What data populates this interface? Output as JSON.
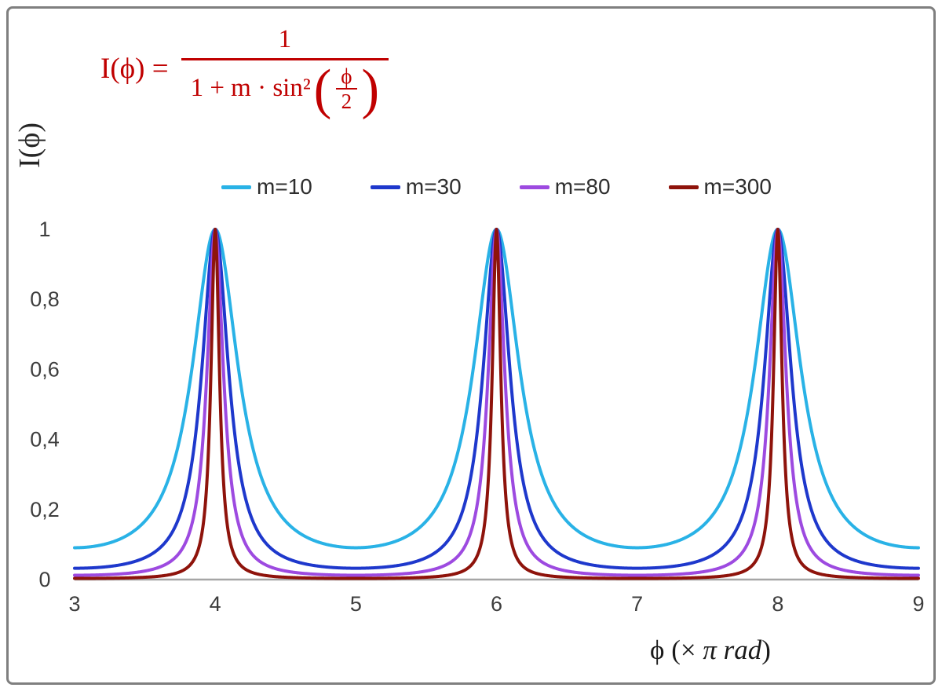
{
  "figure": {
    "formula": {
      "lhs": "I(ϕ) =",
      "numerator": "1",
      "den_prefix": "1 + m · sin²",
      "paren_open": "(",
      "inner_num": "ϕ",
      "inner_den": "2",
      "paren_close": ")"
    },
    "colors": {
      "formula": "#c00000",
      "axis": "#a6a6a6",
      "tick_text": "#3d3d3d",
      "frame": "#7f7f7f",
      "background": "#ffffff"
    }
  },
  "chart_data": {
    "type": "line",
    "title": "",
    "formula": "I(φ) = 1 / (1 + m·sin²(φ/2)), with φ expressed in units of π rad",
    "function": "I(x) = 1 / (1 + m·sin²(π·x/2))",
    "xlabel_parts": [
      "ϕ  (× ",
      "π rad",
      ")"
    ],
    "ylabel": "I(ϕ)",
    "xlim": [
      3,
      9
    ],
    "ylim": [
      0,
      1
    ],
    "x_tick_values": [
      3,
      4,
      5,
      6,
      7,
      8,
      9
    ],
    "x_tick_labels": [
      "3",
      "4",
      "5",
      "6",
      "7",
      "8",
      "9"
    ],
    "y_tick_values": [
      0,
      0.2,
      0.4,
      0.6,
      0.8,
      1
    ],
    "y_tick_labels": [
      "0",
      "0,2",
      "0,4",
      "0,6",
      "0,8",
      "1"
    ],
    "grid": false,
    "legend_position": "top",
    "peaks_at_x": [
      4,
      6,
      8
    ],
    "peak_value": 1,
    "x_step": 0.004,
    "series": [
      {
        "name": "m=10",
        "m": 10,
        "color": "#29b2e6",
        "value_at_x3": 0.0909
      },
      {
        "name": "m=30",
        "m": 30,
        "color": "#1e38cc",
        "value_at_x3": 0.0323
      },
      {
        "name": "m=80",
        "m": 80,
        "color": "#9d4ae0",
        "value_at_x3": 0.0123
      },
      {
        "name": "m=300",
        "m": 300,
        "color": "#8e130b",
        "value_at_x3": 0.0033
      }
    ]
  }
}
